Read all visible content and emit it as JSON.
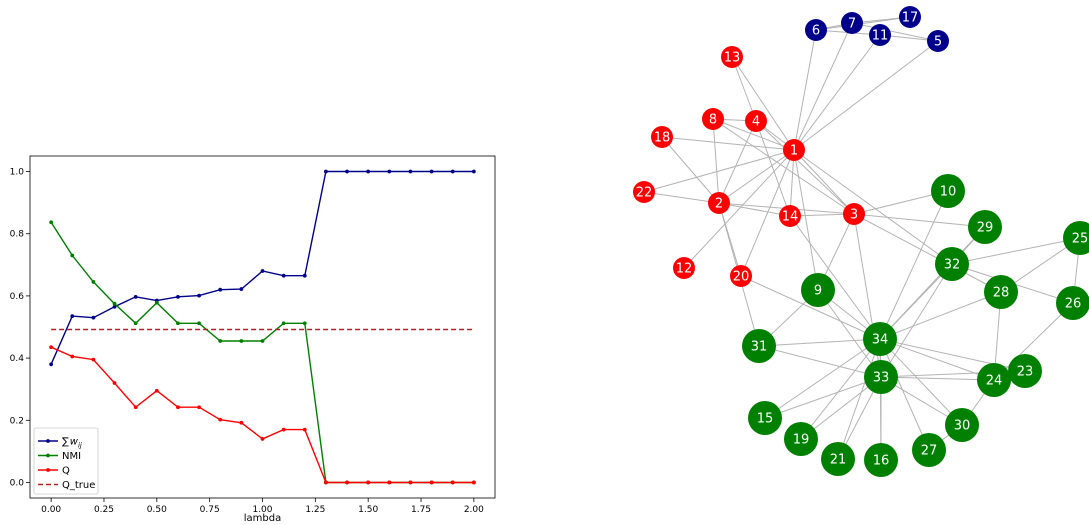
{
  "chart_data": [
    {
      "type": "line",
      "title": "",
      "xlabel": "lambda",
      "ylabel": "",
      "xlim": [
        -0.1,
        2.1
      ],
      "ylim": [
        -0.05,
        1.05
      ],
      "xticks": [
        "0.00",
        "0.25",
        "0.50",
        "0.75",
        "1.00",
        "1.25",
        "1.50",
        "1.75",
        "2.00"
      ],
      "yticks": [
        "0.0",
        "0.2",
        "0.4",
        "0.6",
        "0.8",
        "1.0"
      ],
      "grid": false,
      "legend_position": "lower-left",
      "x": [
        0.0,
        0.1,
        0.2,
        0.3,
        0.4,
        0.5,
        0.6,
        0.7,
        0.8,
        0.9,
        1.0,
        1.1,
        1.2,
        1.3,
        1.4,
        1.5,
        1.6,
        1.7,
        1.8,
        1.9,
        2.0
      ],
      "series": [
        {
          "name": "∑w_ij",
          "label_main": "∑",
          "label_sub": "w",
          "label_subsub": "ij",
          "color": "#00008b",
          "style": "solid-marker",
          "values": [
            0.38,
            0.535,
            0.53,
            0.565,
            0.597,
            0.585,
            0.597,
            0.601,
            0.62,
            0.622,
            0.68,
            0.665,
            0.665,
            1.0,
            1.0,
            1.0,
            1.0,
            1.0,
            1.0,
            1.0,
            1.0
          ]
        },
        {
          "name": "NMI",
          "label_main": "NMI",
          "color": "#008000",
          "style": "solid-marker",
          "values": [
            0.837,
            0.73,
            0.645,
            0.575,
            0.512,
            0.578,
            0.512,
            0.512,
            0.455,
            0.455,
            0.455,
            0.512,
            0.512,
            0.0,
            0.0,
            0.0,
            0.0,
            0.0,
            0.0,
            0.0,
            0.0
          ]
        },
        {
          "name": "Q",
          "label_main": "Q",
          "color": "#ff0000",
          "style": "solid-marker",
          "values": [
            0.435,
            0.405,
            0.395,
            0.32,
            0.242,
            0.295,
            0.242,
            0.242,
            0.202,
            0.192,
            0.14,
            0.17,
            0.17,
            0.0,
            0.0,
            0.0,
            0.0,
            0.0,
            0.0,
            0.0,
            0.0
          ]
        },
        {
          "name": "Q_true",
          "label_main": "Q_true",
          "color": "#b22222",
          "style": "dashed",
          "values": [
            0.492,
            0.492,
            0.492,
            0.492,
            0.492,
            0.492,
            0.492,
            0.492,
            0.492,
            0.492,
            0.492,
            0.492,
            0.492,
            0.492,
            0.492,
            0.492,
            0.492,
            0.492,
            0.492,
            0.492,
            0.492
          ]
        }
      ]
    },
    {
      "type": "network",
      "title": "",
      "colors": {
        "red": "#ff0000",
        "green": "#008000",
        "blue": "#00008b",
        "edge": "#b3b3b3"
      },
      "nodes": [
        {
          "id": "1",
          "group": "red"
        },
        {
          "id": "2",
          "group": "red"
        },
        {
          "id": "3",
          "group": "red"
        },
        {
          "id": "4",
          "group": "red"
        },
        {
          "id": "8",
          "group": "red"
        },
        {
          "id": "12",
          "group": "red"
        },
        {
          "id": "13",
          "group": "red"
        },
        {
          "id": "14",
          "group": "red"
        },
        {
          "id": "18",
          "group": "red"
        },
        {
          "id": "20",
          "group": "red"
        },
        {
          "id": "22",
          "group": "red"
        },
        {
          "id": "5",
          "group": "blue"
        },
        {
          "id": "6",
          "group": "blue"
        },
        {
          "id": "7",
          "group": "blue"
        },
        {
          "id": "11",
          "group": "blue"
        },
        {
          "id": "17",
          "group": "blue"
        },
        {
          "id": "9",
          "group": "green"
        },
        {
          "id": "10",
          "group": "green"
        },
        {
          "id": "15",
          "group": "green"
        },
        {
          "id": "16",
          "group": "green"
        },
        {
          "id": "19",
          "group": "green"
        },
        {
          "id": "21",
          "group": "green"
        },
        {
          "id": "23",
          "group": "green"
        },
        {
          "id": "24",
          "group": "green"
        },
        {
          "id": "25",
          "group": "green"
        },
        {
          "id": "26",
          "group": "green"
        },
        {
          "id": "27",
          "group": "green"
        },
        {
          "id": "28",
          "group": "green"
        },
        {
          "id": "29",
          "group": "green"
        },
        {
          "id": "30",
          "group": "green"
        },
        {
          "id": "31",
          "group": "green"
        },
        {
          "id": "32",
          "group": "green"
        },
        {
          "id": "33",
          "group": "green"
        },
        {
          "id": "34",
          "group": "green"
        }
      ],
      "edges": [
        [
          "1",
          "2"
        ],
        [
          "1",
          "3"
        ],
        [
          "1",
          "4"
        ],
        [
          "1",
          "5"
        ],
        [
          "1",
          "6"
        ],
        [
          "1",
          "7"
        ],
        [
          "1",
          "8"
        ],
        [
          "1",
          "9"
        ],
        [
          "1",
          "11"
        ],
        [
          "1",
          "12"
        ],
        [
          "1",
          "13"
        ],
        [
          "1",
          "14"
        ],
        [
          "1",
          "18"
        ],
        [
          "1",
          "20"
        ],
        [
          "1",
          "22"
        ],
        [
          "1",
          "32"
        ],
        [
          "2",
          "3"
        ],
        [
          "2",
          "4"
        ],
        [
          "2",
          "8"
        ],
        [
          "2",
          "14"
        ],
        [
          "2",
          "18"
        ],
        [
          "2",
          "20"
        ],
        [
          "2",
          "22"
        ],
        [
          "2",
          "31"
        ],
        [
          "3",
          "4"
        ],
        [
          "3",
          "8"
        ],
        [
          "3",
          "9"
        ],
        [
          "3",
          "10"
        ],
        [
          "3",
          "14"
        ],
        [
          "3",
          "28"
        ],
        [
          "3",
          "29"
        ],
        [
          "3",
          "33"
        ],
        [
          "4",
          "8"
        ],
        [
          "4",
          "13"
        ],
        [
          "4",
          "14"
        ],
        [
          "5",
          "7"
        ],
        [
          "5",
          "11"
        ],
        [
          "6",
          "7"
        ],
        [
          "6",
          "11"
        ],
        [
          "6",
          "17"
        ],
        [
          "7",
          "17"
        ],
        [
          "9",
          "31"
        ],
        [
          "9",
          "33"
        ],
        [
          "9",
          "34"
        ],
        [
          "10",
          "34"
        ],
        [
          "14",
          "34"
        ],
        [
          "15",
          "33"
        ],
        [
          "15",
          "34"
        ],
        [
          "16",
          "33"
        ],
        [
          "16",
          "34"
        ],
        [
          "19",
          "33"
        ],
        [
          "19",
          "34"
        ],
        [
          "20",
          "34"
        ],
        [
          "21",
          "33"
        ],
        [
          "21",
          "34"
        ],
        [
          "23",
          "33"
        ],
        [
          "23",
          "34"
        ],
        [
          "24",
          "26"
        ],
        [
          "24",
          "28"
        ],
        [
          "24",
          "30"
        ],
        [
          "24",
          "33"
        ],
        [
          "24",
          "34"
        ],
        [
          "25",
          "26"
        ],
        [
          "25",
          "28"
        ],
        [
          "25",
          "32"
        ],
        [
          "26",
          "32"
        ],
        [
          "27",
          "30"
        ],
        [
          "27",
          "34"
        ],
        [
          "28",
          "34"
        ],
        [
          "29",
          "32"
        ],
        [
          "29",
          "34"
        ],
        [
          "30",
          "33"
        ],
        [
          "30",
          "34"
        ],
        [
          "31",
          "33"
        ],
        [
          "31",
          "34"
        ],
        [
          "32",
          "33"
        ],
        [
          "32",
          "34"
        ],
        [
          "33",
          "34"
        ]
      ]
    }
  ]
}
